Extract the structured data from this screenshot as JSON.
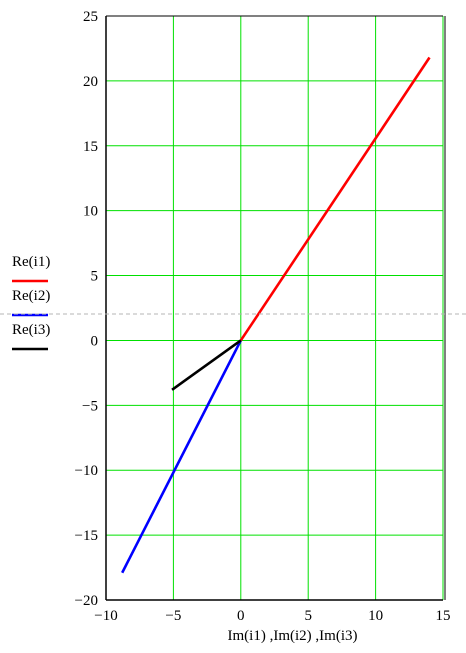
{
  "chart_data": {
    "type": "line",
    "title": "",
    "xlabel": "Im(i1) ,Im(i2) ,Im(i3)",
    "ylabel": "",
    "xlim": [
      -10,
      15
    ],
    "ylim": [
      -20,
      25
    ],
    "x_ticks": [
      -10,
      -5,
      0,
      5,
      10,
      15
    ],
    "y_ticks": [
      -20,
      -15,
      -10,
      -5,
      0,
      5,
      10,
      15,
      20,
      25
    ],
    "x_tick_labels": [
      "−10",
      "−5",
      "0",
      "5",
      "10",
      "15"
    ],
    "y_tick_labels": [
      "−20",
      "−15",
      "−10",
      "−5",
      "0",
      "5",
      "10",
      "15",
      "20",
      "25"
    ],
    "grid": true,
    "grid_color": "#00e000",
    "legend_position": "left",
    "series": [
      {
        "name": "Re(i1)",
        "color": "#ff0000",
        "x": [
          0,
          14
        ],
        "y": [
          0,
          21.8
        ]
      },
      {
        "name": "Re(i2)",
        "color": "#0000ff",
        "x": [
          0,
          -8.8
        ],
        "y": [
          0,
          -17.9
        ]
      },
      {
        "name": "Re(i3)",
        "color": "#000000",
        "x": [
          0,
          -5.1
        ],
        "y": [
          0,
          -3.8
        ]
      }
    ]
  }
}
